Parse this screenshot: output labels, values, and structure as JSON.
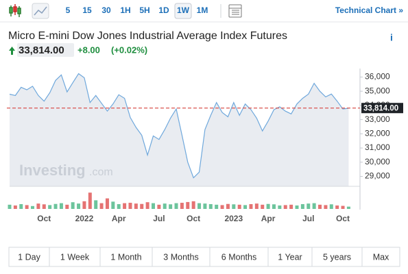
{
  "toolbar": {
    "intervals": [
      "5",
      "15",
      "30",
      "1H",
      "5H",
      "1D",
      "1W",
      "1M"
    ],
    "selected": 6,
    "link": "Technical Chart »"
  },
  "header": {
    "title": "Micro E-mini Dow Jones Industrial Average Index Futures",
    "price": "33,814.00",
    "change": "+8.00",
    "change_pct": "(+0.02%)",
    "info": "i"
  },
  "chart_data": {
    "type": "line",
    "watermark": [
      "Investing",
      ".com"
    ],
    "categories": [
      null,
      null,
      null,
      null,
      null,
      null,
      "Oct",
      null,
      null,
      null,
      null,
      null,
      null,
      "2022",
      null,
      null,
      null,
      null,
      null,
      "Apr",
      null,
      null,
      null,
      null,
      null,
      null,
      "Jul",
      null,
      null,
      null,
      null,
      null,
      "Oct",
      null,
      null,
      null,
      null,
      null,
      null,
      "2023",
      null,
      null,
      null,
      null,
      null,
      "Apr",
      null,
      null,
      null,
      null,
      null,
      null,
      "Jul",
      null,
      null,
      null,
      null,
      null,
      "Oct",
      null
    ],
    "series": [
      {
        "color": "#6fa8dc",
        "values": [
          34790,
          34700,
          35280,
          35100,
          35350,
          34700,
          34300,
          34900,
          35760,
          36150,
          34950,
          35600,
          36240,
          35950,
          34200,
          34700,
          34150,
          33600,
          34100,
          34750,
          34500,
          33150,
          32450,
          31900,
          30500,
          31850,
          31600,
          32300,
          33100,
          33750,
          31900,
          30000,
          28900,
          29300,
          32300,
          33300,
          34200,
          33500,
          33200,
          34200,
          33300,
          34100,
          33700,
          33100,
          32200,
          32900,
          33700,
          33900,
          33600,
          33400,
          34100,
          34500,
          34800,
          35560,
          35000,
          34600,
          34800,
          34300,
          33750,
          33800
        ]
      }
    ],
    "area_color": "#e9ecf1",
    "ylim": [
      28300,
      36600
    ],
    "yticks": [
      {
        "value": 29000,
        "label": "29,000"
      },
      {
        "value": 30000,
        "label": "30,000"
      },
      {
        "value": 31000,
        "label": "31,000"
      },
      {
        "value": 32000,
        "label": "32,000"
      },
      {
        "value": 33000,
        "label": "33,000"
      },
      {
        "value": 34000,
        "label": "34,000"
      },
      {
        "value": 35000,
        "label": "35,000"
      },
      {
        "value": 36000,
        "label": "36,000"
      }
    ],
    "last_value": 33814,
    "last_color": "#d9534f",
    "volume": {
      "up_color": "#6cc49c",
      "down_color": "#e57373",
      "lim": [
        0,
        100
      ],
      "values": [
        22,
        18,
        25,
        20,
        15,
        28,
        24,
        20,
        26,
        30,
        22,
        35,
        28,
        40,
        85,
        45,
        30,
        55,
        38,
        25,
        30,
        32,
        28,
        26,
        35,
        30,
        22,
        28,
        24,
        30,
        32,
        36,
        40,
        30,
        28,
        25,
        22,
        20,
        26,
        24,
        22,
        20,
        25,
        28,
        22,
        26,
        24,
        18,
        20,
        22,
        18,
        25,
        28,
        30,
        22,
        20,
        24,
        18,
        16,
        12
      ]
    }
  },
  "ranges": [
    "1 Day",
    "1 Week",
    "1 Month",
    "3 Months",
    "6 Months",
    "1 Year",
    "5 years",
    "Max"
  ]
}
